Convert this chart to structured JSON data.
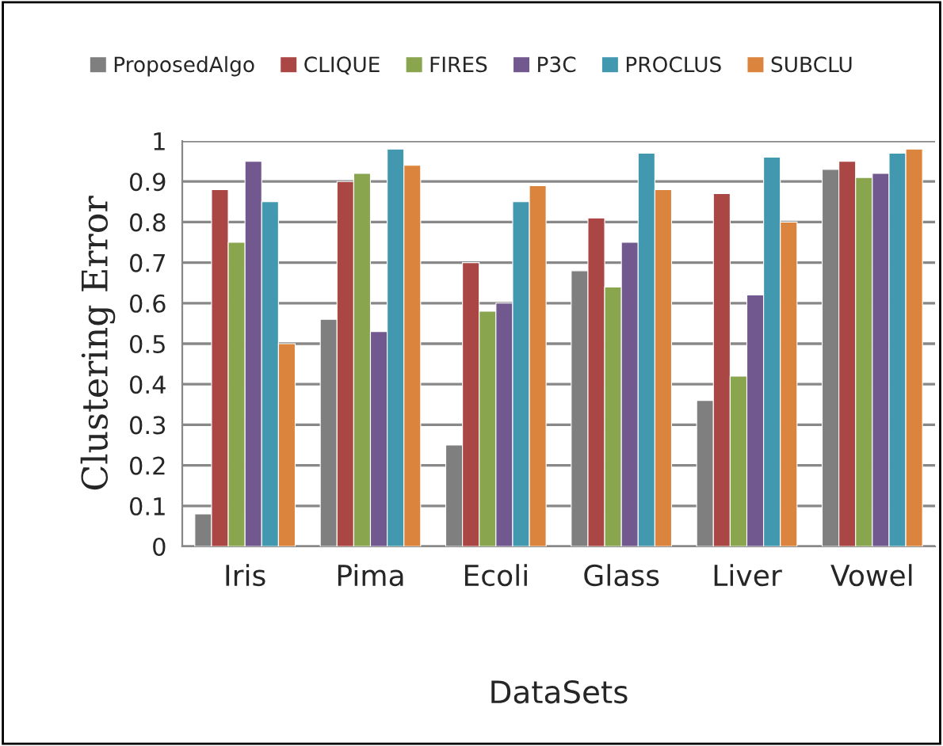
{
  "chart_data": {
    "type": "bar",
    "xlabel": "DataSets",
    "ylabel": "Clustering Error",
    "categories": [
      "Iris",
      "Pima",
      "Ecoli",
      "Glass",
      "Liver",
      "Vowel"
    ],
    "series": [
      {
        "name": "ProposedAlgo",
        "color": "#7f7f7f",
        "values": [
          0.08,
          0.56,
          0.25,
          0.68,
          0.36,
          0.93
        ]
      },
      {
        "name": "CLIQUE",
        "color": "#aa4643",
        "values": [
          0.88,
          0.9,
          0.7,
          0.81,
          0.87,
          0.95
        ]
      },
      {
        "name": "FIRES",
        "color": "#89a54e",
        "values": [
          0.75,
          0.92,
          0.58,
          0.64,
          0.42,
          0.91
        ]
      },
      {
        "name": "P3C",
        "color": "#71588f",
        "values": [
          0.95,
          0.53,
          0.6,
          0.75,
          0.62,
          0.92
        ]
      },
      {
        "name": "PROCLUS",
        "color": "#4198af",
        "values": [
          0.85,
          0.98,
          0.85,
          0.97,
          0.96,
          0.97
        ]
      },
      {
        "name": "SUBCLU",
        "color": "#db843d",
        "values": [
          0.5,
          0.94,
          0.89,
          0.88,
          0.8,
          0.98
        ]
      }
    ],
    "ylim": [
      0,
      1
    ],
    "yticks": [
      0,
      0.1,
      0.2,
      0.3,
      0.4,
      0.5,
      0.6,
      0.7,
      0.8,
      0.9,
      1
    ],
    "grid": "y",
    "legend": "top"
  }
}
